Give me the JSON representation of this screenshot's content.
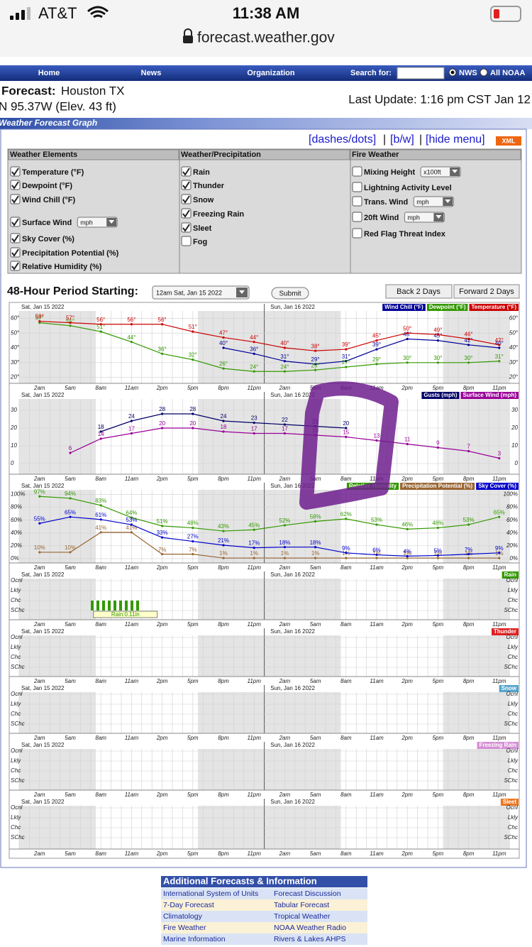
{
  "status": {
    "carrier": "AT&T",
    "time": "11:38 AM",
    "url": "forecast.weather.gov"
  },
  "nav": {
    "links": [
      "Home",
      "News",
      "Organization"
    ],
    "search": "Search for:",
    "radios": [
      "NWS",
      "All NOAA"
    ]
  },
  "header": {
    "label": "Forecast:",
    "place": "Houston TX",
    "coords": "N 95.37W (Elev. 43 ft)",
    "update": "Last Update: 1:16 pm CST Jan 12"
  },
  "section_title": "Weather Forecast Graph",
  "links": [
    "[dashes/dots]",
    "[b/w]",
    "[hide menu]"
  ],
  "xml": "XML",
  "menu": [
    {
      "heading": "Weather Elements",
      "items": [
        {
          "label": "Temperature (°F)",
          "checked": true
        },
        {
          "label": "Dewpoint (°F)",
          "checked": true
        },
        {
          "label": "Wind Chill (°F)",
          "checked": true
        },
        {
          "label": "Surface Wind",
          "checked": true,
          "select": "mph"
        },
        {
          "label": "Sky Cover (%)",
          "checked": true
        },
        {
          "label": "Precipitation Potential (%)",
          "checked": true
        },
        {
          "label": "Relative Humidity (%)",
          "checked": true
        }
      ]
    },
    {
      "heading": "Weather/Precipitation",
      "items": [
        {
          "label": "Rain",
          "checked": true
        },
        {
          "label": "Thunder",
          "checked": true
        },
        {
          "label": "Snow",
          "checked": true
        },
        {
          "label": "Freezing Rain",
          "checked": true
        },
        {
          "label": "Sleet",
          "checked": true
        },
        {
          "label": "Fog",
          "checked": false
        }
      ]
    },
    {
      "heading": "Fire Weather",
      "items": [
        {
          "label": "Mixing Height",
          "checked": false,
          "select": "x100ft"
        },
        {
          "label": "Lightning Activity Level",
          "checked": false
        },
        {
          "label": "Trans. Wind",
          "checked": false,
          "select": "mph"
        },
        {
          "label": "20ft Wind",
          "checked": false,
          "select": "mph"
        },
        {
          "label": "Red Flag Threat Index",
          "checked": false
        }
      ]
    }
  ],
  "period": {
    "label": "48-Hour Period Starting:",
    "select": "12am Sat, Jan 15 2022",
    "submit": "Submit",
    "back": "Back 2 Days",
    "forward": "Forward 2 Days"
  },
  "graph": {
    "days": [
      "Sat, Jan 15 2022",
      "Sun, Jan 16 2022"
    ],
    "hour_labels": [
      "2am",
      "5am",
      "8am",
      "11am",
      "2pm",
      "5pm",
      "8pm",
      "11pm",
      "2am",
      "5am",
      "8am",
      "11am",
      "2pm",
      "5pm",
      "8pm",
      "11pm"
    ],
    "panels": [
      {
        "type": "line",
        "ylim": [
          15,
          65
        ],
        "yticks": [
          {
            "value": 20,
            "label": "20°"
          },
          {
            "value": 30,
            "label": "30°"
          },
          {
            "value": 40,
            "label": "40°"
          },
          {
            "value": 50,
            "label": "50°"
          },
          {
            "value": 60,
            "label": "60°"
          }
        ],
        "series": [
          {
            "name": "Wind Chill (°F)",
            "color": "#000099",
            "x": [
              20,
              23,
              26,
              29,
              32,
              35,
              38,
              41,
              44,
              47
            ],
            "values": [
              40,
              36,
              31,
              29,
              31,
              39,
              46,
              45,
              42,
              40
            ],
            "value_labels": [
              "40°",
              "36°",
              "31°",
              "29°",
              "31°",
              "39°",
              "46°",
              "45°",
              "42°",
              "40°"
            ]
          },
          {
            "name": "Dewpoint (°F)",
            "color": "#339900",
            "x": [
              2,
              5,
              8,
              11,
              14,
              17,
              20,
              23,
              26,
              29,
              32,
              35,
              38,
              41,
              44,
              47
            ],
            "values": [
              57,
              55,
              51,
              44,
              36,
              32,
              26,
              24,
              24,
              25,
              27,
              29,
              30,
              30,
              30,
              31
            ],
            "value_labels": [
              "57°",
              "55°",
              "51°",
              "44°",
              "36°",
              "32°",
              "26°",
              "24°",
              "24°",
              "25°",
              "27°",
              "29°",
              "30°",
              "30°",
              "30°",
              "31°"
            ]
          },
          {
            "name": "Temperature (°F)",
            "color": "#cc0000",
            "x": [
              2,
              5,
              8,
              11,
              14,
              17,
              20,
              23,
              26,
              29,
              32,
              35,
              38,
              41,
              44,
              47
            ],
            "values": [
              58,
              57,
              56,
              56,
              56,
              51,
              47,
              44,
              40,
              38,
              39,
              45,
              50,
              49,
              46,
              42
            ],
            "value_labels": [
              "58°",
              "57°",
              "56°",
              "56°",
              "56°",
              "51°",
              "47°",
              "44°",
              "40°",
              "38°",
              "39°",
              "45°",
              "50°",
              "49°",
              "46°",
              "42°"
            ]
          }
        ]
      },
      {
        "type": "line",
        "ylim": [
          -4,
          36
        ],
        "yticks": [
          0,
          10,
          20,
          30
        ],
        "series": [
          {
            "name": "Gusts (mph)",
            "color": "#000066",
            "x": [
              8,
              11,
              14,
              17,
              20,
              23,
              26,
              29,
              32
            ],
            "values": [
              18,
              24,
              28,
              28,
              24,
              23,
              22,
              21,
              20
            ]
          },
          {
            "name": "Surface Wind (mph)",
            "color": "#990099",
            "x": [
              5,
              8,
              11,
              14,
              17,
              20,
              23,
              26,
              29,
              32,
              35,
              38,
              41,
              44,
              47
            ],
            "values": [
              6,
              14,
              17,
              20,
              20,
              18,
              17,
              17,
              16,
              15,
              13,
              11,
              9,
              7,
              3
            ]
          }
        ]
      },
      {
        "type": "line",
        "ylim": [
          -5,
          105
        ],
        "yticks": [
          {
            "value": 0,
            "label": "0%"
          },
          {
            "value": 20,
            "label": "20%"
          },
          {
            "value": 40,
            "label": "40%"
          },
          {
            "value": 60,
            "label": "60%"
          },
          {
            "value": 80,
            "label": "80%"
          },
          {
            "value": 100,
            "label": "100%"
          }
        ],
        "series": [
          {
            "name": "Relative Humidity",
            "color": "#339900",
            "x": [
              2,
              5,
              8,
              11,
              14,
              17,
              20,
              23,
              26,
              29,
              32,
              35,
              38,
              41,
              44,
              47
            ],
            "values": [
              97,
              94,
              83,
              64,
              51,
              48,
              43,
              45,
              52,
              58,
              62,
              53,
              46,
              48,
              53,
              65
            ],
            "value_labels": [
              "97%",
              "94%",
              "83%",
              "64%",
              "51%",
              "48%",
              "43%",
              "45%",
              "52%",
              "58%",
              "62%",
              "53%",
              "46%",
              "48%",
              "53%",
              "65%"
            ]
          },
          {
            "name": "Precipitation Potential (%)",
            "color": "#996633",
            "x": [
              2,
              5,
              8,
              11,
              14,
              17,
              20,
              23,
              26,
              29,
              32,
              35,
              38,
              41,
              44,
              47
            ],
            "values": [
              10,
              10,
              41,
              41,
              7,
              7,
              1,
              1,
              1,
              1,
              1,
              1,
              1,
              1,
              1,
              1
            ],
            "value_labels": [
              "10%",
              "10%",
              "41%",
              "41%",
              "7%",
              "7%",
              "1%",
              "1%",
              "1%",
              "1%",
              "1%",
              "1%",
              "1%",
              "1%",
              "1%",
              "1%"
            ]
          },
          {
            "name": "Sky Cover (%)",
            "color": "#0000cc",
            "x": [
              2,
              5,
              8,
              11,
              14,
              17,
              20,
              23,
              26,
              29,
              32,
              35,
              38,
              41,
              44,
              47
            ],
            "values": [
              55,
              65,
              61,
              53,
              33,
              27,
              21,
              17,
              18,
              18,
              9,
              6,
              4,
              5,
              7,
              9
            ],
            "value_labels": [
              "55%",
              "65%",
              "61%",
              "53%",
              "33%",
              "27%",
              "21%",
              "17%",
              "18%",
              "18%",
              "9%",
              "6%",
              "4%",
              "5%",
              "7%",
              "9%"
            ]
          }
        ]
      },
      {
        "type": "levels",
        "name": "Rain",
        "color": "#339900",
        "levels": [
          "Ocnl",
          "Lkly",
          "Chc",
          "SChc"
        ],
        "bars": [
          {
            "start": 7,
            "end": 12,
            "level": "SChc"
          }
        ],
        "annotation": "Rain:0.11in"
      },
      {
        "type": "levels",
        "name": "Thunder",
        "color": "#dd2222",
        "levels": [
          "Ocnl",
          "Lkly",
          "Chc",
          "SChc"
        ],
        "bars": []
      },
      {
        "type": "levels",
        "name": "Snow",
        "color": "#55a5cc",
        "levels": [
          "Ocnl",
          "Lkly",
          "Chc",
          "SChc"
        ],
        "bars": []
      },
      {
        "type": "levels",
        "name": "Freezing Rain",
        "color": "#d58fd5",
        "levels": [
          "Ocnl",
          "Lkly",
          "Chc",
          "SChc"
        ],
        "bars": []
      },
      {
        "type": "levels",
        "name": "Sleet",
        "color": "#ee7722",
        "levels": [
          "Ocnl",
          "Lkly",
          "Chc",
          "SChc"
        ],
        "bars": []
      }
    ]
  },
  "footer": {
    "title": "Additional Forecasts & Information",
    "rows": [
      [
        "International System of Units",
        "Forecast Discussion"
      ],
      [
        "7-Day Forecast",
        "Tabular Forecast"
      ],
      [
        "Climatology",
        "Tropical Weather"
      ],
      [
        "Fire Weather",
        "NOAA Weather Radio"
      ],
      [
        "Marine Information",
        "Rivers & Lakes AHPS"
      ]
    ]
  }
}
